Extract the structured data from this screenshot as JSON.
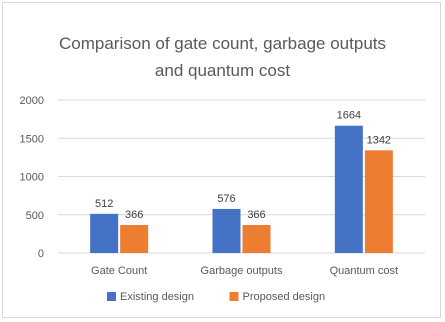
{
  "chart_data": {
    "type": "bar",
    "title_line1": "Comparison of gate count, garbage outputs",
    "title_line2": "and quantum cost",
    "categories": [
      "Gate Count",
      "Garbage outputs",
      "Quantum cost"
    ],
    "series": [
      {
        "name": "Existing design",
        "values": [
          512,
          576,
          1664
        ],
        "color": "#4472c4"
      },
      {
        "name": "Proposed design",
        "values": [
          366,
          366,
          1342
        ],
        "color": "#ed7d31"
      }
    ],
    "ylim": [
      0,
      2000
    ],
    "y_ticks": [
      0,
      500,
      1000,
      1500,
      2000
    ],
    "grid": true,
    "legend_position": "bottom",
    "gridline_color": "#d9d9d9"
  }
}
